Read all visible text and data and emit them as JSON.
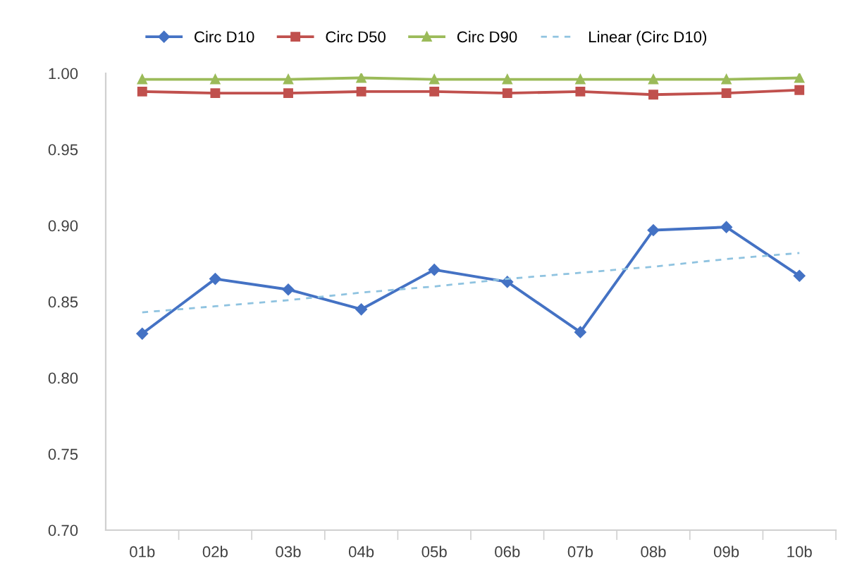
{
  "chart_data": {
    "type": "line",
    "categories": [
      "01b",
      "02b",
      "03b",
      "04b",
      "05b",
      "06b",
      "07b",
      "08b",
      "09b",
      "10b"
    ],
    "series": [
      {
        "name": "Circ D10",
        "color": "#4472c4",
        "marker": "diamond",
        "values": [
          0.829,
          0.865,
          0.858,
          0.845,
          0.871,
          0.863,
          0.83,
          0.897,
          0.899,
          0.867
        ]
      },
      {
        "name": "Circ D50",
        "color": "#c0504d",
        "marker": "square",
        "values": [
          0.988,
          0.987,
          0.987,
          0.988,
          0.988,
          0.987,
          0.988,
          0.986,
          0.987,
          0.989
        ]
      },
      {
        "name": "Circ D90",
        "color": "#9bbb59",
        "marker": "triangle",
        "values": [
          0.996,
          0.996,
          0.996,
          0.997,
          0.996,
          0.996,
          0.996,
          0.996,
          0.996,
          0.997
        ]
      },
      {
        "name": "Linear (Circ D10)",
        "color": "#8fc3e0",
        "marker": "none",
        "line_style": "dashed",
        "values": [
          0.843,
          0.847,
          0.851,
          0.856,
          0.86,
          0.865,
          0.869,
          0.873,
          0.878,
          0.882
        ]
      }
    ],
    "ylim": [
      0.7,
      1.0
    ],
    "yticks": [
      {
        "value": 0.7,
        "label": "0.70"
      },
      {
        "value": 0.75,
        "label": "0.75"
      },
      {
        "value": 0.8,
        "label": "0.80"
      },
      {
        "value": 0.85,
        "label": "0.85"
      },
      {
        "value": 0.9,
        "label": "0.90"
      },
      {
        "value": 0.95,
        "label": "0.95"
      },
      {
        "value": 1.0,
        "label": "1.00"
      }
    ],
    "grid": false,
    "legend": "top"
  }
}
